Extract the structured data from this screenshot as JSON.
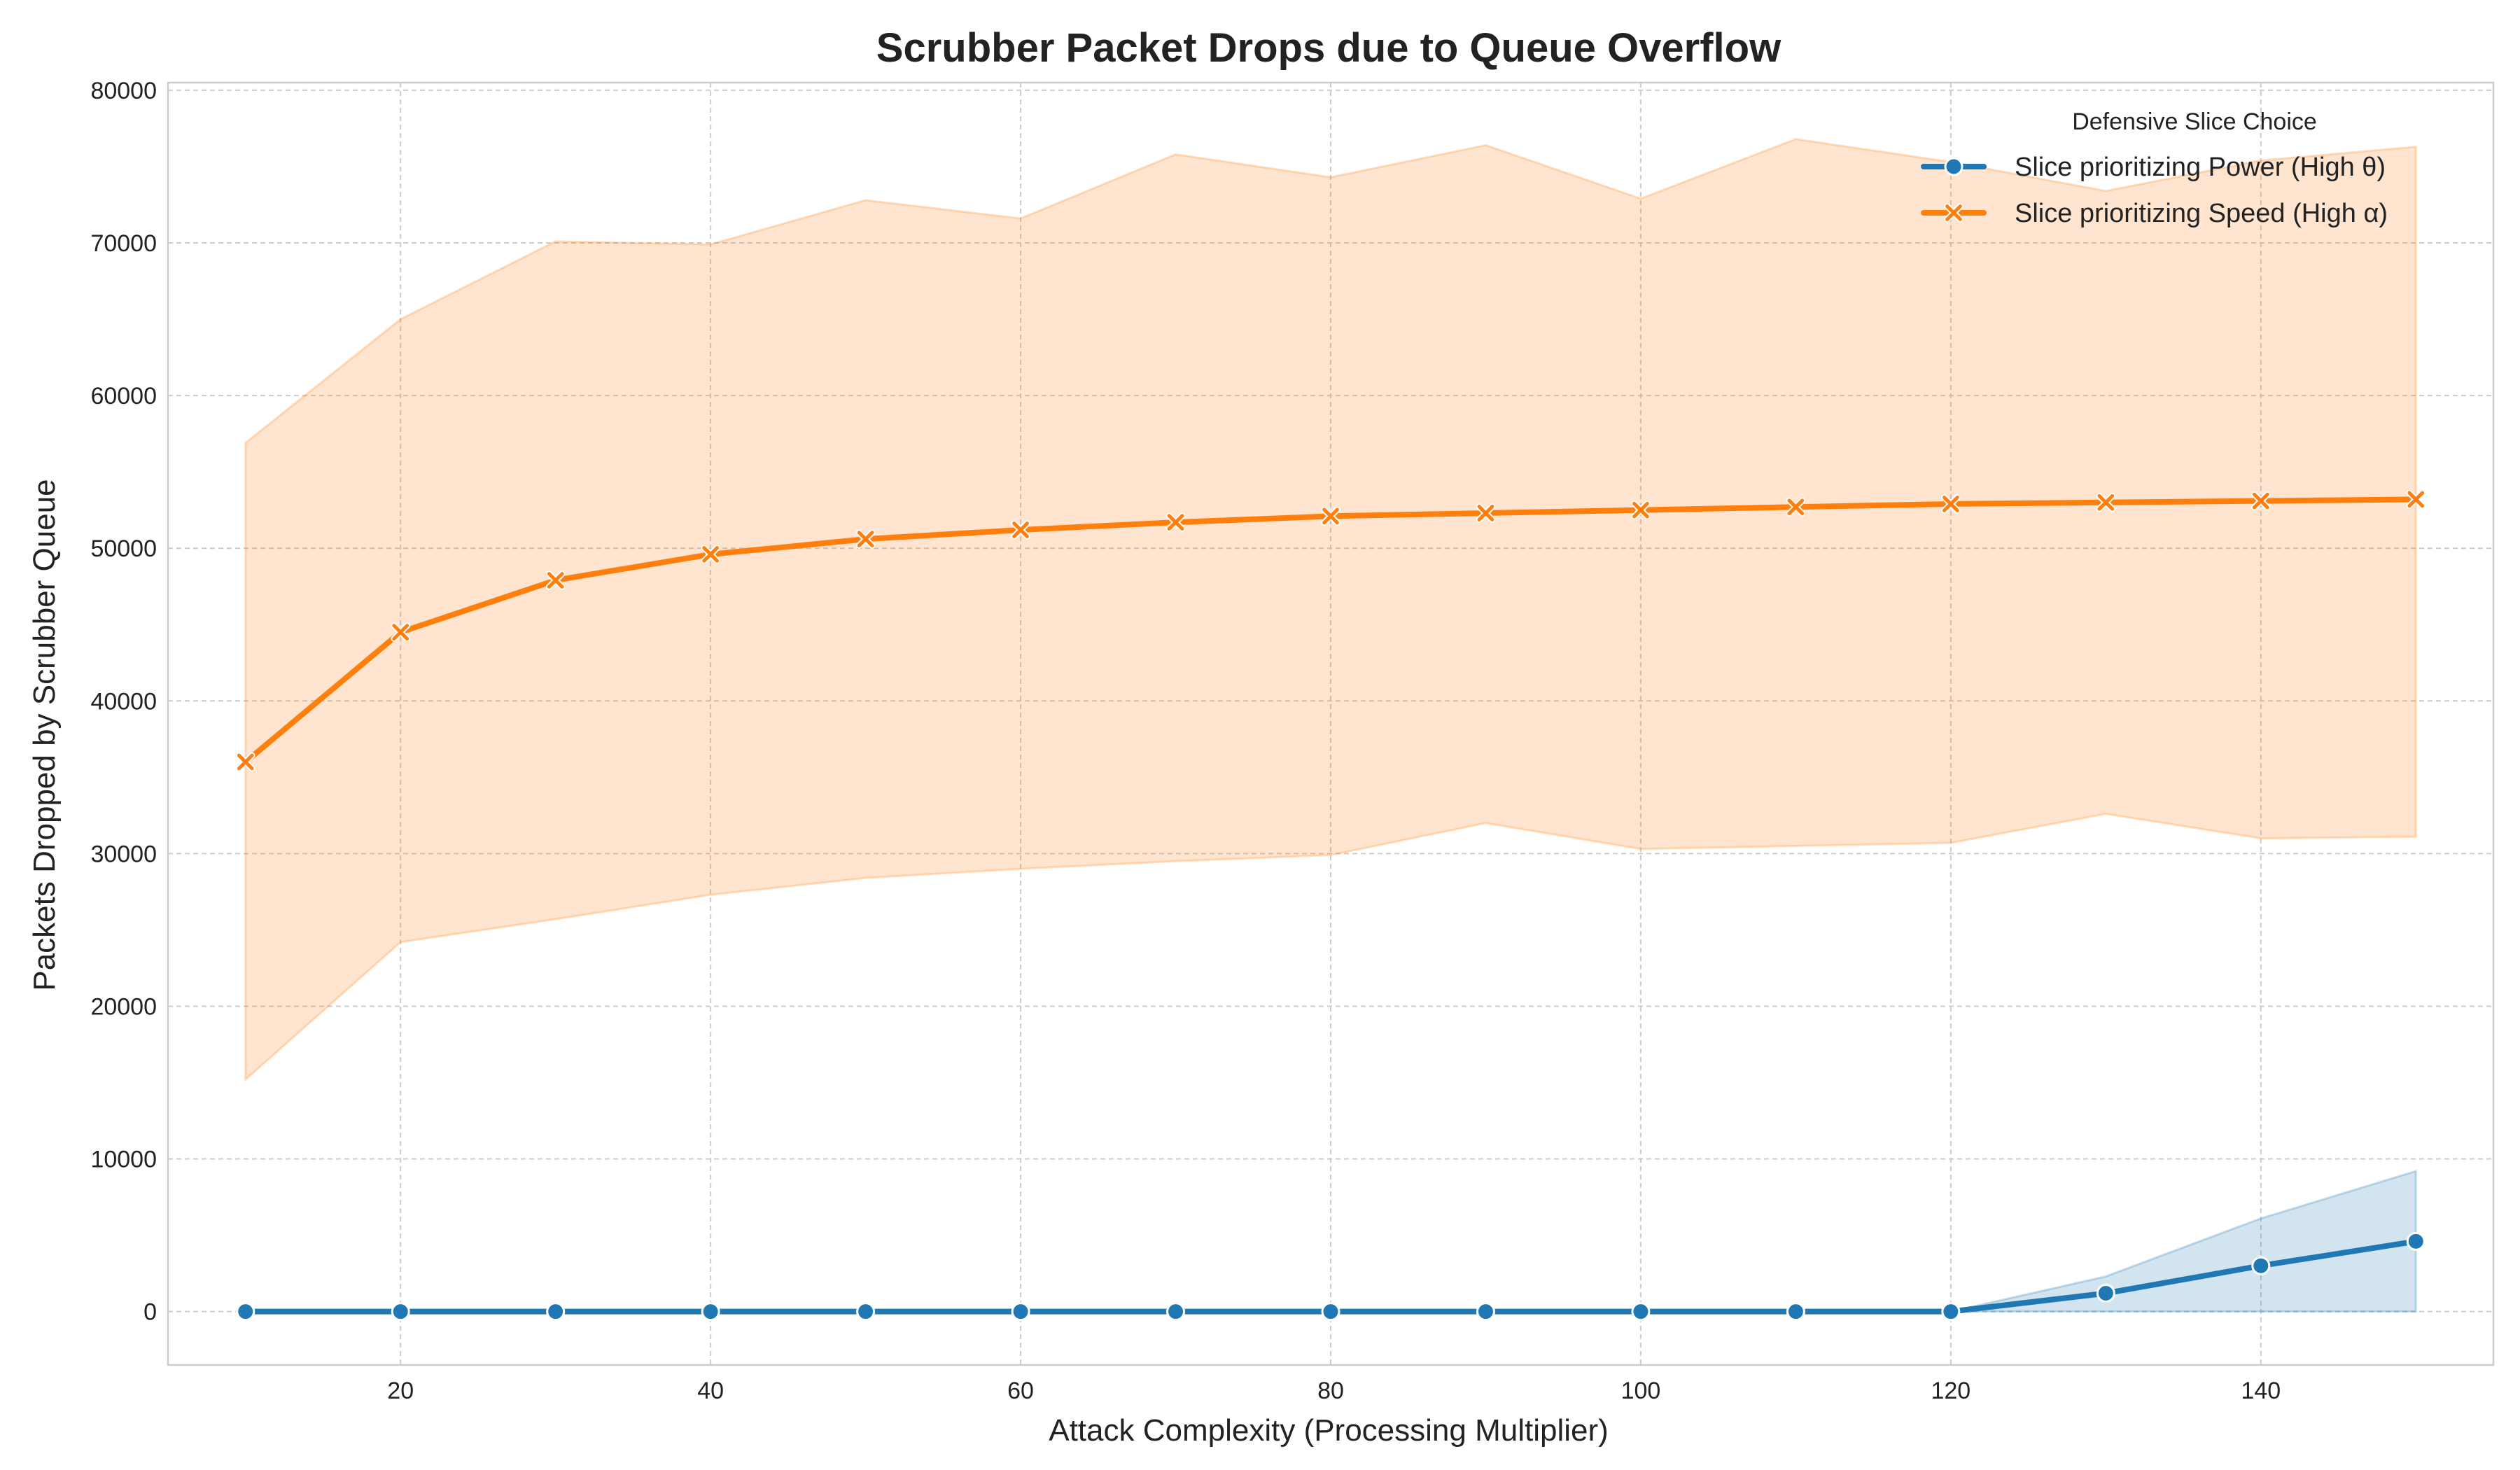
{
  "chart_data": {
    "type": "line",
    "title": "Scrubber Packet Drops due to Queue Overflow",
    "xlabel": "Attack Complexity (Processing Multiplier)",
    "ylabel": "Packets Dropped by Scrubber Queue",
    "xlim": [
      5,
      155
    ],
    "ylim": [
      -3500,
      80500
    ],
    "x_ticks": [
      20,
      40,
      60,
      80,
      100,
      120,
      140
    ],
    "y_ticks": [
      0,
      10000,
      20000,
      30000,
      40000,
      50000,
      60000,
      70000,
      80000
    ],
    "grid": true,
    "legend": {
      "title": "Defensive Slice Choice",
      "placement": "top-right"
    },
    "x": [
      10,
      20,
      30,
      40,
      50,
      60,
      70,
      80,
      90,
      100,
      110,
      120,
      130,
      140,
      150
    ],
    "series": [
      {
        "name": "Slice prioritizing Power (High θ)",
        "color": "#1f77b4",
        "marker": "circle",
        "values": [
          0,
          0,
          0,
          0,
          0,
          0,
          0,
          0,
          0,
          0,
          0,
          0,
          1200,
          3000,
          4600
        ],
        "band_lower": [
          0,
          0,
          0,
          0,
          0,
          0,
          0,
          0,
          0,
          0,
          0,
          0,
          0,
          0,
          0
        ],
        "band_upper": [
          0,
          0,
          0,
          0,
          0,
          0,
          0,
          0,
          0,
          0,
          0,
          0,
          2300,
          6100,
          9200
        ]
      },
      {
        "name": "Slice prioritizing Speed (High α)",
        "color": "#ff7f0e",
        "marker": "x",
        "values": [
          36000,
          44500,
          47900,
          49600,
          50600,
          51200,
          51700,
          52100,
          52300,
          52500,
          52700,
          52900,
          53000,
          53100,
          53200
        ],
        "band_lower": [
          15200,
          24200,
          25700,
          27300,
          28400,
          29000,
          29500,
          29900,
          32000,
          30300,
          30500,
          30700,
          32600,
          31000,
          31100
        ],
        "band_upper": [
          56900,
          65000,
          70100,
          69900,
          72800,
          71600,
          75800,
          74300,
          76400,
          72900,
          76800,
          75300,
          73400,
          75400,
          76300
        ]
      }
    ]
  }
}
